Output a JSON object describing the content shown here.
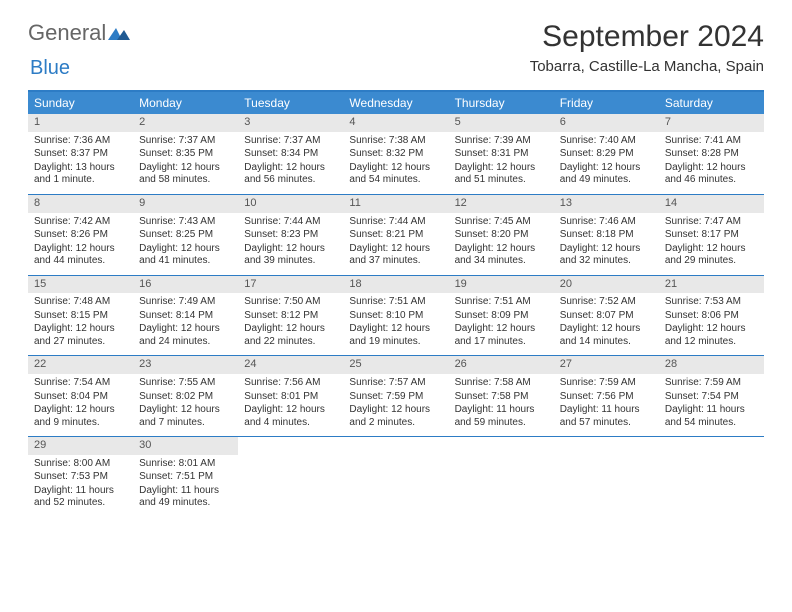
{
  "logo": {
    "text1": "General",
    "text2": "Blue"
  },
  "title": "September 2024",
  "location": "Tobarra, Castille-La Mancha, Spain",
  "colors": {
    "header_bg": "#3b8ad0",
    "header_text": "#ffffff",
    "accent_border": "#2d7cc5",
    "daynum_bg": "#e8e8e8",
    "body_text": "#333333"
  },
  "day_names": [
    "Sunday",
    "Monday",
    "Tuesday",
    "Wednesday",
    "Thursday",
    "Friday",
    "Saturday"
  ],
  "weeks": [
    [
      {
        "day": "1",
        "sunrise": "Sunrise: 7:36 AM",
        "sunset": "Sunset: 8:37 PM",
        "daylight": "Daylight: 13 hours and 1 minute."
      },
      {
        "day": "2",
        "sunrise": "Sunrise: 7:37 AM",
        "sunset": "Sunset: 8:35 PM",
        "daylight": "Daylight: 12 hours and 58 minutes."
      },
      {
        "day": "3",
        "sunrise": "Sunrise: 7:37 AM",
        "sunset": "Sunset: 8:34 PM",
        "daylight": "Daylight: 12 hours and 56 minutes."
      },
      {
        "day": "4",
        "sunrise": "Sunrise: 7:38 AM",
        "sunset": "Sunset: 8:32 PM",
        "daylight": "Daylight: 12 hours and 54 minutes."
      },
      {
        "day": "5",
        "sunrise": "Sunrise: 7:39 AM",
        "sunset": "Sunset: 8:31 PM",
        "daylight": "Daylight: 12 hours and 51 minutes."
      },
      {
        "day": "6",
        "sunrise": "Sunrise: 7:40 AM",
        "sunset": "Sunset: 8:29 PM",
        "daylight": "Daylight: 12 hours and 49 minutes."
      },
      {
        "day": "7",
        "sunrise": "Sunrise: 7:41 AM",
        "sunset": "Sunset: 8:28 PM",
        "daylight": "Daylight: 12 hours and 46 minutes."
      }
    ],
    [
      {
        "day": "8",
        "sunrise": "Sunrise: 7:42 AM",
        "sunset": "Sunset: 8:26 PM",
        "daylight": "Daylight: 12 hours and 44 minutes."
      },
      {
        "day": "9",
        "sunrise": "Sunrise: 7:43 AM",
        "sunset": "Sunset: 8:25 PM",
        "daylight": "Daylight: 12 hours and 41 minutes."
      },
      {
        "day": "10",
        "sunrise": "Sunrise: 7:44 AM",
        "sunset": "Sunset: 8:23 PM",
        "daylight": "Daylight: 12 hours and 39 minutes."
      },
      {
        "day": "11",
        "sunrise": "Sunrise: 7:44 AM",
        "sunset": "Sunset: 8:21 PM",
        "daylight": "Daylight: 12 hours and 37 minutes."
      },
      {
        "day": "12",
        "sunrise": "Sunrise: 7:45 AM",
        "sunset": "Sunset: 8:20 PM",
        "daylight": "Daylight: 12 hours and 34 minutes."
      },
      {
        "day": "13",
        "sunrise": "Sunrise: 7:46 AM",
        "sunset": "Sunset: 8:18 PM",
        "daylight": "Daylight: 12 hours and 32 minutes."
      },
      {
        "day": "14",
        "sunrise": "Sunrise: 7:47 AM",
        "sunset": "Sunset: 8:17 PM",
        "daylight": "Daylight: 12 hours and 29 minutes."
      }
    ],
    [
      {
        "day": "15",
        "sunrise": "Sunrise: 7:48 AM",
        "sunset": "Sunset: 8:15 PM",
        "daylight": "Daylight: 12 hours and 27 minutes."
      },
      {
        "day": "16",
        "sunrise": "Sunrise: 7:49 AM",
        "sunset": "Sunset: 8:14 PM",
        "daylight": "Daylight: 12 hours and 24 minutes."
      },
      {
        "day": "17",
        "sunrise": "Sunrise: 7:50 AM",
        "sunset": "Sunset: 8:12 PM",
        "daylight": "Daylight: 12 hours and 22 minutes."
      },
      {
        "day": "18",
        "sunrise": "Sunrise: 7:51 AM",
        "sunset": "Sunset: 8:10 PM",
        "daylight": "Daylight: 12 hours and 19 minutes."
      },
      {
        "day": "19",
        "sunrise": "Sunrise: 7:51 AM",
        "sunset": "Sunset: 8:09 PM",
        "daylight": "Daylight: 12 hours and 17 minutes."
      },
      {
        "day": "20",
        "sunrise": "Sunrise: 7:52 AM",
        "sunset": "Sunset: 8:07 PM",
        "daylight": "Daylight: 12 hours and 14 minutes."
      },
      {
        "day": "21",
        "sunrise": "Sunrise: 7:53 AM",
        "sunset": "Sunset: 8:06 PM",
        "daylight": "Daylight: 12 hours and 12 minutes."
      }
    ],
    [
      {
        "day": "22",
        "sunrise": "Sunrise: 7:54 AM",
        "sunset": "Sunset: 8:04 PM",
        "daylight": "Daylight: 12 hours and 9 minutes."
      },
      {
        "day": "23",
        "sunrise": "Sunrise: 7:55 AM",
        "sunset": "Sunset: 8:02 PM",
        "daylight": "Daylight: 12 hours and 7 minutes."
      },
      {
        "day": "24",
        "sunrise": "Sunrise: 7:56 AM",
        "sunset": "Sunset: 8:01 PM",
        "daylight": "Daylight: 12 hours and 4 minutes."
      },
      {
        "day": "25",
        "sunrise": "Sunrise: 7:57 AM",
        "sunset": "Sunset: 7:59 PM",
        "daylight": "Daylight: 12 hours and 2 minutes."
      },
      {
        "day": "26",
        "sunrise": "Sunrise: 7:58 AM",
        "sunset": "Sunset: 7:58 PM",
        "daylight": "Daylight: 11 hours and 59 minutes."
      },
      {
        "day": "27",
        "sunrise": "Sunrise: 7:59 AM",
        "sunset": "Sunset: 7:56 PM",
        "daylight": "Daylight: 11 hours and 57 minutes."
      },
      {
        "day": "28",
        "sunrise": "Sunrise: 7:59 AM",
        "sunset": "Sunset: 7:54 PM",
        "daylight": "Daylight: 11 hours and 54 minutes."
      }
    ],
    [
      {
        "day": "29",
        "sunrise": "Sunrise: 8:00 AM",
        "sunset": "Sunset: 7:53 PM",
        "daylight": "Daylight: 11 hours and 52 minutes."
      },
      {
        "day": "30",
        "sunrise": "Sunrise: 8:01 AM",
        "sunset": "Sunset: 7:51 PM",
        "daylight": "Daylight: 11 hours and 49 minutes."
      },
      {
        "day": "",
        "sunrise": "",
        "sunset": "",
        "daylight": ""
      },
      {
        "day": "",
        "sunrise": "",
        "sunset": "",
        "daylight": ""
      },
      {
        "day": "",
        "sunrise": "",
        "sunset": "",
        "daylight": ""
      },
      {
        "day": "",
        "sunrise": "",
        "sunset": "",
        "daylight": ""
      },
      {
        "day": "",
        "sunrise": "",
        "sunset": "",
        "daylight": ""
      }
    ]
  ]
}
